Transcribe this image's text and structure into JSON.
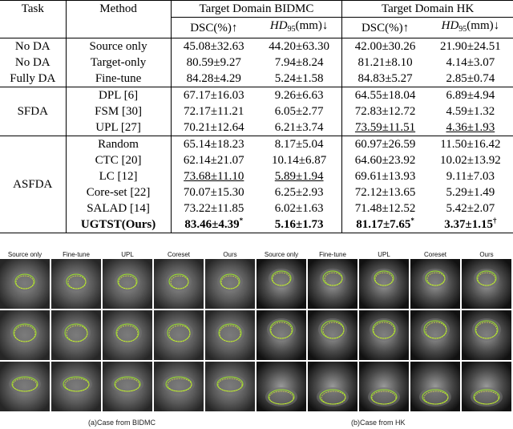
{
  "table": {
    "headers": {
      "task": "Task",
      "method": "Method",
      "bidmc_domain": "Target Domain BIDMC",
      "hk_domain": "Target Domain HK",
      "dsc": "DSC(%)↑",
      "hd": "HD",
      "hd_sub": "95",
      "hd_unit": "(mm)↓"
    },
    "rows": [
      {
        "task": "No DA",
        "method": "Source only",
        "b_dsc": "45.08±32.63",
        "b_hd": "44.20±63.30",
        "h_dsc": "42.00±30.26",
        "h_hd": "21.90±24.51"
      },
      {
        "task": "No DA",
        "method": "Target-only",
        "b_dsc": "80.59±9.27",
        "b_hd": "7.94±8.24",
        "h_dsc": "81.21±8.10",
        "h_hd": "4.14±3.07"
      },
      {
        "task": "Fully DA",
        "method": "Fine-tune",
        "b_dsc": "84.28±4.29",
        "b_hd": "5.24±1.58",
        "h_dsc": "84.83±5.27",
        "h_hd": "2.85±0.74"
      },
      {
        "task": "SFDA",
        "method": "DPL [6]",
        "b_dsc": "67.17±16.03",
        "b_hd": "9.26±6.63",
        "h_dsc": "64.55±18.04",
        "h_hd": "6.89±4.94"
      },
      {
        "method": "FSM [30]",
        "b_dsc": "72.17±11.21",
        "b_hd": "6.05±2.77",
        "h_dsc": "72.83±12.72",
        "h_hd": "4.59±1.32"
      },
      {
        "method": "UPL [27]",
        "b_dsc": "70.21±12.64",
        "b_hd": "6.21±3.74",
        "h_dsc": "73.59±11.51",
        "h_hd": "4.36±1.93"
      },
      {
        "task": "ASFDA",
        "method": "Random",
        "b_dsc": "65.14±18.23",
        "b_hd": "8.17±5.04",
        "h_dsc": "60.97±26.59",
        "h_hd": "11.50±16.42"
      },
      {
        "method": "CTC [20]",
        "b_dsc": "62.14±21.07",
        "b_hd": "10.14±6.87",
        "h_dsc": "64.60±23.92",
        "h_hd": "10.02±13.92"
      },
      {
        "method": "LC [12]",
        "b_dsc": "73.68±11.10",
        "b_hd": "5.89±1.94",
        "h_dsc": "69.61±13.93",
        "h_hd": "9.11±7.03"
      },
      {
        "method": "Core-set [22]",
        "b_dsc": "70.07±15.30",
        "b_hd": "6.25±2.93",
        "h_dsc": "72.12±13.65",
        "h_hd": "5.29±1.49"
      },
      {
        "method": "SALAD [14]",
        "b_dsc": "73.22±11.85",
        "b_hd": "6.02±1.63",
        "h_dsc": "71.48±12.52",
        "h_hd": "5.42±2.07"
      },
      {
        "method": "UGTST(Ours)",
        "b_dsc": "83.46±4.39",
        "b_dsc_sup": "*",
        "b_hd": "5.16±1.73",
        "h_dsc": "81.17±7.65",
        "h_dsc_sup": "*",
        "h_hd": "3.37±1.15",
        "h_hd_sup": "†"
      }
    ]
  },
  "figure": {
    "columns": [
      "Source only",
      "Fine-tune",
      "UPL",
      "Coreset",
      "Ours"
    ],
    "caption_left": "(a)Case from BIDMC",
    "caption_right": "(b)Case from HK",
    "contour_color": "#9be22a"
  }
}
